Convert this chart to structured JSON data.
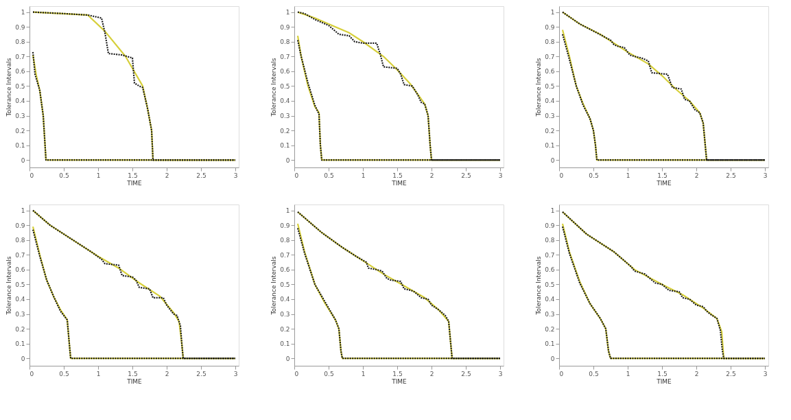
{
  "chart_data": [
    {
      "type": "line",
      "xlabel": "TIME",
      "ylabel": "Tolerance Intervals",
      "xlim": [
        0,
        3.05
      ],
      "ylim": [
        -0.05,
        1.04
      ],
      "xticks": [
        0,
        0.5,
        1,
        1.5,
        2,
        2.5,
        3
      ],
      "yticks": [
        0,
        0.1,
        0.2,
        0.3,
        0.4,
        0.5,
        0.6,
        0.7,
        0.8,
        0.9,
        1
      ],
      "grid": false,
      "marker": "none",
      "series": [
        {
          "color": "#d6cf3a",
          "line_style": "solid",
          "x": [
            0.05,
            0.85,
            1.1,
            1.4,
            1.65,
            1.72,
            1.78,
            1.8,
            3
          ],
          "values": [
            1,
            0.98,
            0.87,
            0.7,
            0.5,
            0.35,
            0.2,
            0,
            0
          ]
        },
        {
          "color": "#d6cf3a",
          "line_style": "solid",
          "x": [
            0.05,
            0.1,
            0.15,
            0.2,
            0.24,
            3
          ],
          "values": [
            0.71,
            0.57,
            0.47,
            0.3,
            0,
            0
          ]
        },
        {
          "color": "#1a1a1a",
          "line_style": "dotted",
          "x": [
            0.05,
            0.5,
            0.85,
            1.05,
            1.1,
            1.15,
            1.35,
            1.5,
            1.53,
            1.6,
            1.65,
            1.72,
            1.78,
            1.8,
            3
          ],
          "values": [
            1,
            0.99,
            0.98,
            0.96,
            0.86,
            0.72,
            0.71,
            0.69,
            0.52,
            0.5,
            0.49,
            0.35,
            0.2,
            0,
            0
          ]
        },
        {
          "color": "#1a1a1a",
          "line_style": "dotted",
          "x": [
            0.05,
            0.08,
            0.15,
            0.2,
            0.24,
            3
          ],
          "values": [
            0.73,
            0.58,
            0.47,
            0.3,
            0,
            0
          ]
        }
      ]
    },
    {
      "type": "line",
      "xlabel": "TIME",
      "ylabel": "Tolerance Intervals",
      "xlim": [
        0,
        3.05
      ],
      "ylim": [
        -0.05,
        1.04
      ],
      "xticks": [
        0,
        0.5,
        1,
        1.5,
        2,
        2.5,
        3
      ],
      "yticks": [
        0,
        0.1,
        0.2,
        0.3,
        0.4,
        0.5,
        0.6,
        0.7,
        0.8,
        0.9,
        1
      ],
      "grid": false,
      "marker": "none",
      "series": [
        {
          "color": "#d6cf3a",
          "line_style": "solid",
          "x": [
            0.05,
            0.3,
            0.6,
            0.8,
            1,
            1.3,
            1.5,
            1.7,
            1.9,
            1.95,
            1.98,
            2,
            3
          ],
          "values": [
            1,
            0.96,
            0.9,
            0.86,
            0.8,
            0.7,
            0.61,
            0.51,
            0.38,
            0.3,
            0.1,
            0,
            0
          ]
        },
        {
          "color": "#d6cf3a",
          "line_style": "solid",
          "x": [
            0.05,
            0.1,
            0.2,
            0.3,
            0.36,
            0.38,
            0.4,
            3
          ],
          "values": [
            0.84,
            0.7,
            0.5,
            0.36,
            0.32,
            0.1,
            0,
            0
          ]
        },
        {
          "color": "#1a1a1a",
          "line_style": "dotted",
          "x": [
            0.05,
            0.15,
            0.3,
            0.5,
            0.65,
            0.8,
            0.88,
            1.0,
            1.2,
            1.25,
            1.3,
            1.5,
            1.55,
            1.6,
            1.72,
            1.8,
            1.85,
            1.9,
            1.95,
            1.98,
            2,
            3
          ],
          "values": [
            1,
            0.99,
            0.95,
            0.91,
            0.85,
            0.84,
            0.8,
            0.79,
            0.79,
            0.72,
            0.63,
            0.62,
            0.58,
            0.51,
            0.5,
            0.44,
            0.39,
            0.38,
            0.3,
            0.1,
            0,
            0
          ]
        },
        {
          "color": "#1a1a1a",
          "line_style": "dotted",
          "x": [
            0.05,
            0.1,
            0.2,
            0.3,
            0.36,
            0.38,
            0.4,
            3
          ],
          "values": [
            0.81,
            0.7,
            0.52,
            0.37,
            0.31,
            0.1,
            0,
            0
          ]
        }
      ]
    },
    {
      "type": "line",
      "xlabel": "TIME",
      "ylabel": "Tolerance Intervals",
      "xlim": [
        0,
        3.05
      ],
      "ylim": [
        -0.05,
        1.04
      ],
      "xticks": [
        0,
        0.5,
        1,
        1.5,
        2,
        2.5,
        3
      ],
      "yticks": [
        0,
        0.1,
        0.2,
        0.3,
        0.4,
        0.5,
        0.6,
        0.7,
        0.8,
        0.9,
        1
      ],
      "grid": false,
      "marker": "none",
      "series": [
        {
          "color": "#d6cf3a",
          "line_style": "solid",
          "x": [
            0.05,
            0.3,
            0.6,
            1,
            1.3,
            1.5,
            1.7,
            1.9,
            2.05,
            2.1,
            2.13,
            2.15,
            3
          ],
          "values": [
            1,
            0.92,
            0.85,
            0.73,
            0.65,
            0.57,
            0.48,
            0.4,
            0.32,
            0.25,
            0.1,
            0,
            0
          ]
        },
        {
          "color": "#d6cf3a",
          "line_style": "solid",
          "x": [
            0.05,
            0.15,
            0.25,
            0.35,
            0.45,
            0.5,
            0.53,
            0.55,
            3
          ],
          "values": [
            0.88,
            0.7,
            0.5,
            0.38,
            0.28,
            0.2,
            0.1,
            0,
            0
          ]
        },
        {
          "color": "#1a1a1a",
          "line_style": "dotted",
          "x": [
            0.05,
            0.3,
            0.55,
            0.75,
            0.8,
            0.85,
            0.95,
            1.03,
            1.1,
            1.2,
            1.3,
            1.35,
            1.58,
            1.65,
            1.78,
            1.83,
            1.9,
            1.98,
            2.05,
            2.1,
            2.13,
            2.15,
            3
          ],
          "values": [
            1,
            0.92,
            0.86,
            0.81,
            0.78,
            0.77,
            0.76,
            0.71,
            0.7,
            0.69,
            0.67,
            0.59,
            0.58,
            0.49,
            0.48,
            0.41,
            0.4,
            0.34,
            0.32,
            0.25,
            0.1,
            0,
            0
          ]
        },
        {
          "color": "#1a1a1a",
          "line_style": "dotted",
          "x": [
            0.05,
            0.15,
            0.25,
            0.35,
            0.45,
            0.5,
            0.53,
            0.55,
            3
          ],
          "values": [
            0.85,
            0.68,
            0.5,
            0.37,
            0.28,
            0.2,
            0.1,
            0,
            0
          ]
        }
      ]
    },
    {
      "type": "line",
      "xlabel": "TIME",
      "ylabel": "Tolerance Intervals",
      "xlim": [
        0,
        3.05
      ],
      "ylim": [
        -0.05,
        1.04
      ],
      "xticks": [
        0,
        0.5,
        1,
        1.5,
        2,
        2.5,
        3
      ],
      "yticks": [
        0,
        0.1,
        0.2,
        0.3,
        0.4,
        0.5,
        0.6,
        0.7,
        0.8,
        0.9,
        1
      ],
      "grid": false,
      "marker": "none",
      "series": [
        {
          "color": "#d6cf3a",
          "line_style": "solid",
          "x": [
            0.05,
            0.3,
            0.6,
            1,
            1.3,
            1.6,
            1.9,
            2.1,
            2.18,
            2.22,
            2.24,
            3
          ],
          "values": [
            1,
            0.9,
            0.81,
            0.69,
            0.61,
            0.51,
            0.42,
            0.31,
            0.25,
            0.1,
            0,
            0
          ]
        },
        {
          "color": "#d6cf3a",
          "line_style": "solid",
          "x": [
            0.05,
            0.15,
            0.25,
            0.35,
            0.45,
            0.55,
            0.58,
            0.6,
            3
          ],
          "values": [
            0.89,
            0.7,
            0.53,
            0.42,
            0.33,
            0.26,
            0.1,
            0,
            0
          ]
        },
        {
          "color": "#1a1a1a",
          "line_style": "dotted",
          "x": [
            0.05,
            0.3,
            0.6,
            0.9,
            1.05,
            1.1,
            1.3,
            1.35,
            1.5,
            1.55,
            1.6,
            1.75,
            1.8,
            1.95,
            2.0,
            2.1,
            2.15,
            2.2,
            2.22,
            2.24,
            3
          ],
          "values": [
            1,
            0.9,
            0.81,
            0.72,
            0.67,
            0.64,
            0.63,
            0.56,
            0.55,
            0.53,
            0.48,
            0.47,
            0.41,
            0.41,
            0.36,
            0.3,
            0.29,
            0.22,
            0.1,
            0,
            0
          ]
        },
        {
          "color": "#1a1a1a",
          "line_style": "dotted",
          "x": [
            0.05,
            0.15,
            0.25,
            0.35,
            0.45,
            0.55,
            0.58,
            0.6,
            3
          ],
          "values": [
            0.87,
            0.69,
            0.53,
            0.42,
            0.32,
            0.26,
            0.1,
            0,
            0
          ]
        }
      ]
    },
    {
      "type": "line",
      "xlabel": "TIME",
      "ylabel": "Tolerance Intervals",
      "xlim": [
        0,
        3.05
      ],
      "ylim": [
        -0.05,
        1.04
      ],
      "xticks": [
        0,
        0.5,
        1,
        1.5,
        2,
        2.5,
        3
      ],
      "yticks": [
        0,
        0.1,
        0.2,
        0.3,
        0.4,
        0.5,
        0.6,
        0.7,
        0.8,
        0.9,
        1
      ],
      "grid": false,
      "marker": "none",
      "series": [
        {
          "color": "#d6cf3a",
          "line_style": "solid",
          "x": [
            0.05,
            0.4,
            0.7,
            1,
            1.3,
            1.6,
            1.9,
            2.1,
            2.25,
            2.28,
            2.3,
            3
          ],
          "values": [
            0.99,
            0.85,
            0.75,
            0.66,
            0.57,
            0.49,
            0.41,
            0.33,
            0.25,
            0.1,
            0,
            0
          ]
        },
        {
          "color": "#d6cf3a",
          "line_style": "solid",
          "x": [
            0.05,
            0.15,
            0.3,
            0.45,
            0.6,
            0.65,
            0.68,
            0.7,
            3
          ],
          "values": [
            0.91,
            0.72,
            0.5,
            0.37,
            0.26,
            0.2,
            0.05,
            0,
            0
          ]
        },
        {
          "color": "#1a1a1a",
          "line_style": "dotted",
          "x": [
            0.05,
            0.4,
            0.7,
            0.9,
            1.05,
            1.08,
            1.2,
            1.28,
            1.35,
            1.4,
            1.55,
            1.6,
            1.7,
            1.75,
            1.85,
            1.95,
            2.0,
            2.1,
            2.2,
            2.25,
            2.28,
            2.3,
            3
          ],
          "values": [
            0.99,
            0.85,
            0.75,
            0.69,
            0.65,
            0.61,
            0.6,
            0.59,
            0.54,
            0.53,
            0.52,
            0.47,
            0.46,
            0.45,
            0.41,
            0.4,
            0.36,
            0.33,
            0.29,
            0.25,
            0.1,
            0,
            0
          ]
        },
        {
          "color": "#1a1a1a",
          "line_style": "dotted",
          "x": [
            0.05,
            0.15,
            0.3,
            0.45,
            0.6,
            0.65,
            0.68,
            0.7,
            3
          ],
          "values": [
            0.88,
            0.71,
            0.5,
            0.38,
            0.26,
            0.2,
            0.05,
            0,
            0
          ]
        }
      ]
    },
    {
      "type": "line",
      "xlabel": "TIME",
      "ylabel": "Tolerance Intervals",
      "xlim": [
        0,
        3.05
      ],
      "ylim": [
        -0.05,
        1.04
      ],
      "xticks": [
        0,
        0.5,
        1,
        1.5,
        2,
        2.5,
        3
      ],
      "yticks": [
        0,
        0.1,
        0.2,
        0.3,
        0.4,
        0.5,
        0.6,
        0.7,
        0.8,
        0.9,
        1
      ],
      "grid": false,
      "marker": "none",
      "series": [
        {
          "color": "#d6cf3a",
          "line_style": "solid",
          "x": [
            0.05,
            0.4,
            0.8,
            1.1,
            1.5,
            1.8,
            2.1,
            2.3,
            2.37,
            2.4,
            3
          ],
          "values": [
            0.99,
            0.84,
            0.72,
            0.6,
            0.5,
            0.43,
            0.34,
            0.27,
            0.18,
            0,
            0
          ]
        },
        {
          "color": "#d6cf3a",
          "line_style": "solid",
          "x": [
            0.05,
            0.15,
            0.3,
            0.45,
            0.6,
            0.68,
            0.72,
            0.75,
            3
          ],
          "values": [
            0.91,
            0.72,
            0.52,
            0.37,
            0.27,
            0.2,
            0.05,
            0,
            0
          ]
        },
        {
          "color": "#1a1a1a",
          "line_style": "dotted",
          "x": [
            0.05,
            0.4,
            0.8,
            1.0,
            1.05,
            1.1,
            1.25,
            1.4,
            1.5,
            1.6,
            1.75,
            1.8,
            1.9,
            2.0,
            2.1,
            2.15,
            2.2,
            2.3,
            2.35,
            2.38,
            2.4,
            3
          ],
          "values": [
            0.99,
            0.84,
            0.72,
            0.64,
            0.62,
            0.59,
            0.57,
            0.51,
            0.5,
            0.46,
            0.45,
            0.41,
            0.4,
            0.36,
            0.35,
            0.32,
            0.3,
            0.27,
            0.19,
            0.05,
            0,
            0
          ]
        },
        {
          "color": "#1a1a1a",
          "line_style": "dotted",
          "x": [
            0.05,
            0.15,
            0.3,
            0.45,
            0.6,
            0.68,
            0.72,
            0.75,
            3
          ],
          "values": [
            0.89,
            0.71,
            0.51,
            0.37,
            0.27,
            0.2,
            0.05,
            0,
            0
          ]
        }
      ]
    }
  ]
}
